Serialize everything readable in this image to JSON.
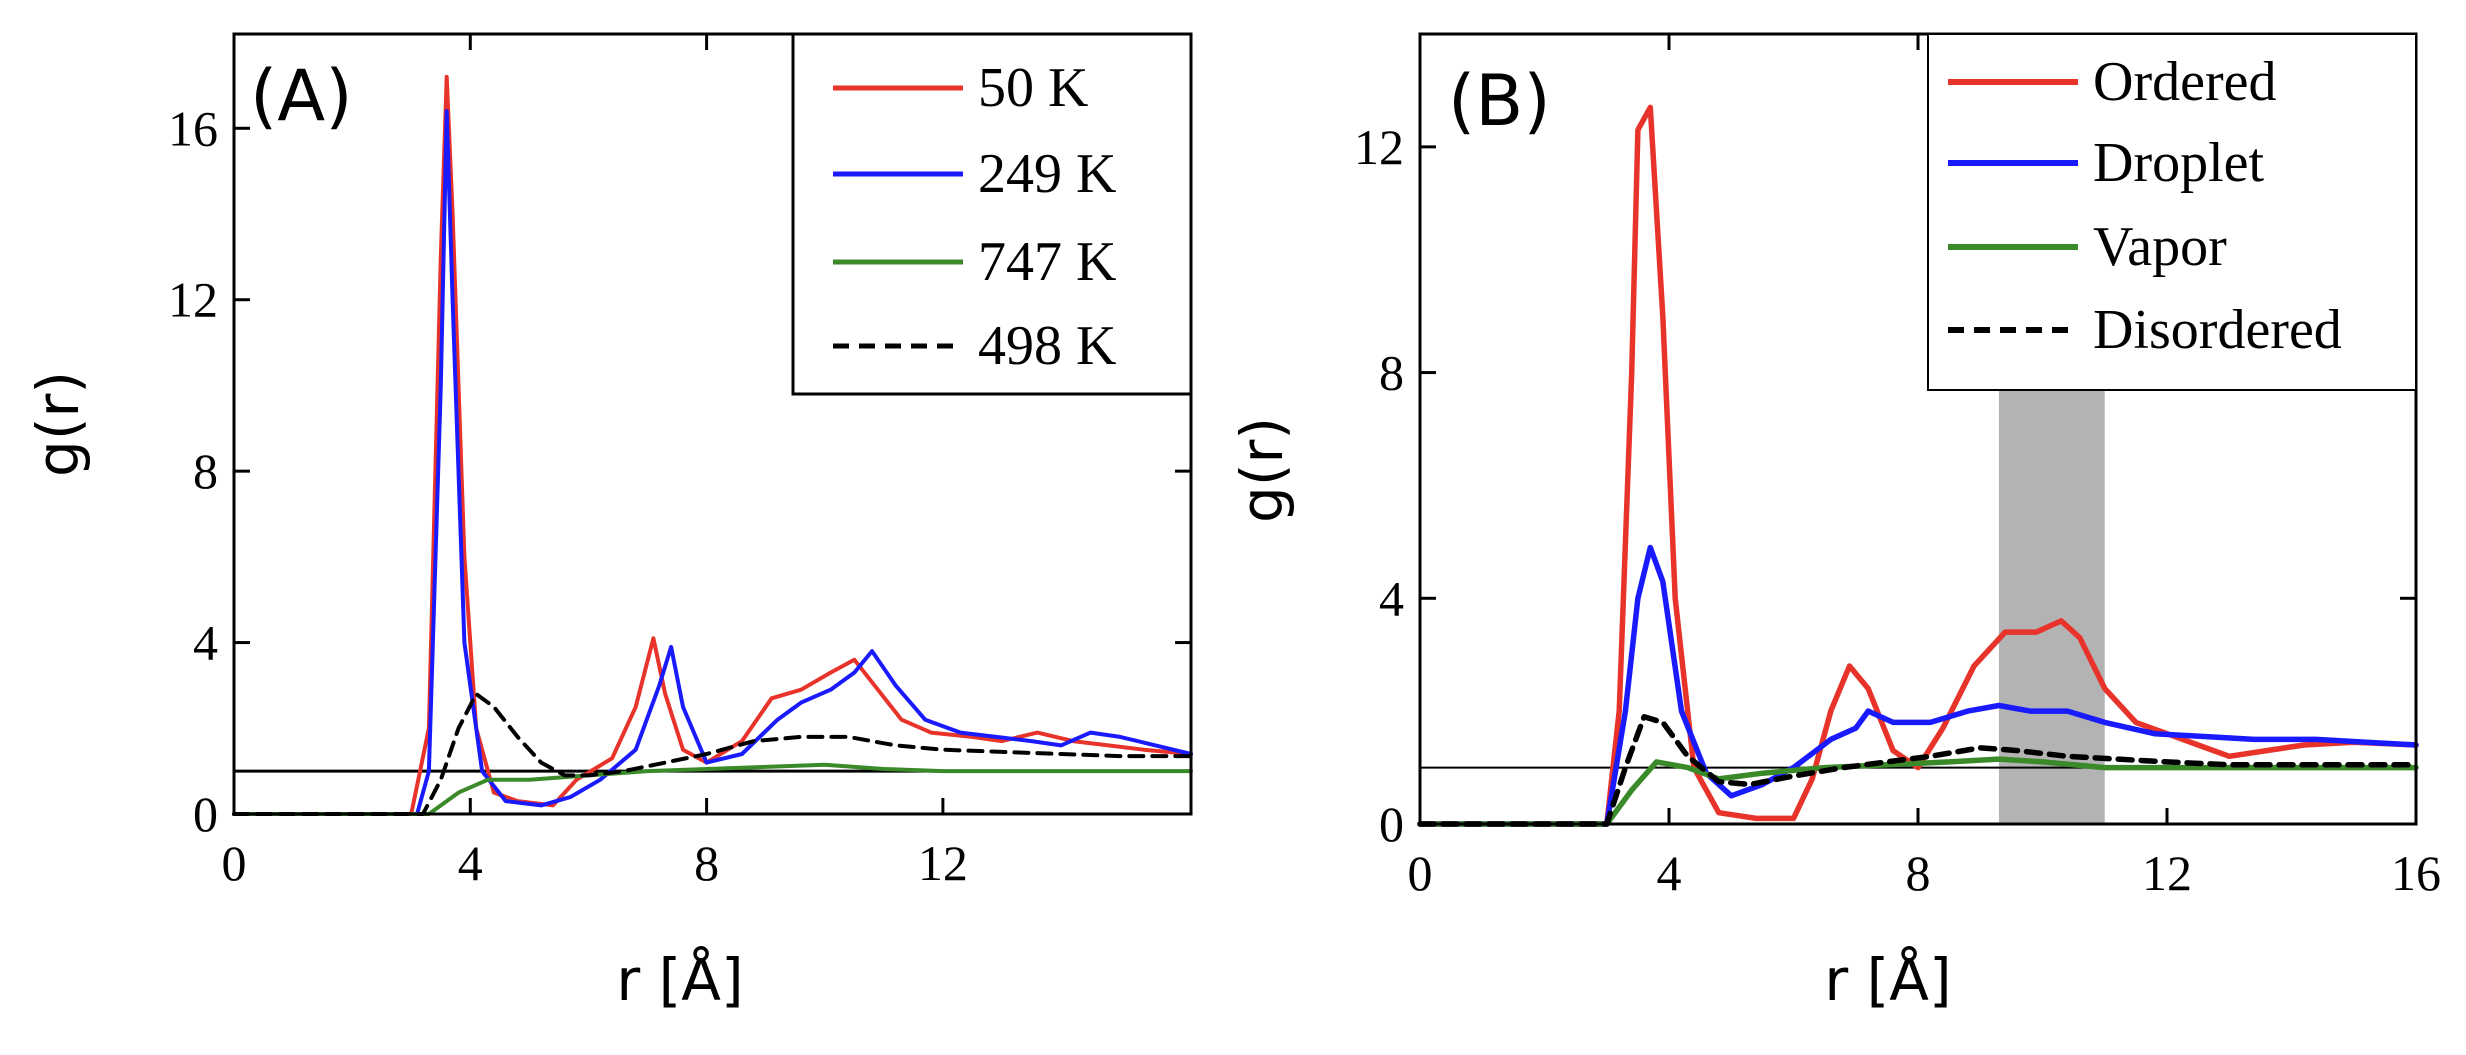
{
  "colors": {
    "red": "#e8332a",
    "blue": "#1a1aff",
    "green": "#3a8a2a",
    "black": "#000000",
    "shade": "#b3b3b3"
  },
  "chart_data": [
    {
      "type": "line",
      "panel": "(A)",
      "xlabel": "r [Å]",
      "ylabel": "g(r)",
      "xlim": [
        0,
        16.2
      ],
      "ylim": [
        0,
        18.2
      ],
      "xticks": [
        0,
        4,
        8,
        12
      ],
      "yticks": [
        0,
        4,
        8,
        12,
        16
      ],
      "reference_line_y": 1,
      "legend_position": "top-right",
      "series": [
        {
          "name": "50 K",
          "color": "red",
          "dash": "solid",
          "points": [
            [
              0,
              0
            ],
            [
              3,
              0
            ],
            [
              3.3,
              2
            ],
            [
              3.5,
              13
            ],
            [
              3.6,
              17.2
            ],
            [
              3.7,
              14
            ],
            [
              3.9,
              6
            ],
            [
              4.1,
              2
            ],
            [
              4.4,
              0.5
            ],
            [
              4.8,
              0.3
            ],
            [
              5.4,
              0.2
            ],
            [
              5.8,
              0.8
            ],
            [
              6.4,
              1.3
            ],
            [
              6.8,
              2.5
            ],
            [
              7.1,
              4.1
            ],
            [
              7.3,
              2.8
            ],
            [
              7.6,
              1.5
            ],
            [
              8,
              1.2
            ],
            [
              8.6,
              1.7
            ],
            [
              9.1,
              2.7
            ],
            [
              9.6,
              2.9
            ],
            [
              10.1,
              3.3
            ],
            [
              10.5,
              3.6
            ],
            [
              10.9,
              2.9
            ],
            [
              11.3,
              2.2
            ],
            [
              11.8,
              1.9
            ],
            [
              12.5,
              1.8
            ],
            [
              13,
              1.7
            ],
            [
              13.6,
              1.9
            ],
            [
              14.2,
              1.7
            ],
            [
              14.8,
              1.6
            ],
            [
              15.4,
              1.5
            ],
            [
              16.2,
              1.4
            ]
          ]
        },
        {
          "name": "249 K",
          "color": "blue",
          "dash": "solid",
          "points": [
            [
              0,
              0
            ],
            [
              3.1,
              0
            ],
            [
              3.3,
              1
            ],
            [
              3.5,
              10
            ],
            [
              3.6,
              16.4
            ],
            [
              3.7,
              12
            ],
            [
              3.9,
              4
            ],
            [
              4.2,
              1
            ],
            [
              4.6,
              0.3
            ],
            [
              5.2,
              0.2
            ],
            [
              5.7,
              0.4
            ],
            [
              6.2,
              0.8
            ],
            [
              6.8,
              1.5
            ],
            [
              7.2,
              3
            ],
            [
              7.4,
              3.9
            ],
            [
              7.6,
              2.5
            ],
            [
              8,
              1.2
            ],
            [
              8.6,
              1.4
            ],
            [
              9.2,
              2.2
            ],
            [
              9.6,
              2.6
            ],
            [
              10.1,
              2.9
            ],
            [
              10.5,
              3.3
            ],
            [
              10.8,
              3.8
            ],
            [
              11.2,
              3
            ],
            [
              11.7,
              2.2
            ],
            [
              12.3,
              1.9
            ],
            [
              12.9,
              1.8
            ],
            [
              13.5,
              1.7
            ],
            [
              14,
              1.6
            ],
            [
              14.5,
              1.9
            ],
            [
              15,
              1.8
            ],
            [
              15.6,
              1.6
            ],
            [
              16.2,
              1.4
            ]
          ]
        },
        {
          "name": "747 K",
          "color": "green",
          "dash": "solid",
          "points": [
            [
              0,
              0
            ],
            [
              3.3,
              0
            ],
            [
              3.8,
              0.5
            ],
            [
              4.3,
              0.8
            ],
            [
              5,
              0.8
            ],
            [
              6,
              0.9
            ],
            [
              7,
              1
            ],
            [
              8,
              1.05
            ],
            [
              9,
              1.1
            ],
            [
              10,
              1.15
            ],
            [
              11,
              1.05
            ],
            [
              12,
              1
            ],
            [
              13,
              1
            ],
            [
              14,
              1
            ],
            [
              15,
              1
            ],
            [
              16.2,
              1
            ]
          ]
        },
        {
          "name": "498 K",
          "color": "black",
          "dash": "dashed",
          "points": [
            [
              0,
              0
            ],
            [
              3.2,
              0
            ],
            [
              3.5,
              0.8
            ],
            [
              3.8,
              2
            ],
            [
              4.1,
              2.8
            ],
            [
              4.4,
              2.5
            ],
            [
              4.8,
              1.8
            ],
            [
              5.2,
              1.2
            ],
            [
              5.6,
              0.9
            ],
            [
              6,
              0.9
            ],
            [
              6.6,
              1
            ],
            [
              7.3,
              1.2
            ],
            [
              8,
              1.4
            ],
            [
              8.8,
              1.7
            ],
            [
              9.6,
              1.8
            ],
            [
              10.4,
              1.8
            ],
            [
              11.2,
              1.6
            ],
            [
              12,
              1.5
            ],
            [
              13,
              1.45
            ],
            [
              14,
              1.4
            ],
            [
              15,
              1.35
            ],
            [
              16.2,
              1.35
            ]
          ]
        }
      ]
    },
    {
      "type": "line",
      "panel": "(B)",
      "xlabel": "r [Å]",
      "ylabel": "g(r)",
      "xlim": [
        0,
        16
      ],
      "ylim": [
        0,
        14
      ],
      "xticks": [
        0,
        4,
        8,
        12,
        16
      ],
      "yticks": [
        0,
        4,
        8,
        12
      ],
      "reference_line_y": 1,
      "shaded_band_x": [
        9.3,
        11
      ],
      "legend_position": "top-right",
      "series": [
        {
          "name": "Ordered",
          "color": "red",
          "dash": "solid",
          "points": [
            [
              0,
              0
            ],
            [
              3,
              0
            ],
            [
              3.2,
              2
            ],
            [
              3.4,
              8
            ],
            [
              3.5,
              12.3
            ],
            [
              3.7,
              12.7
            ],
            [
              3.9,
              9
            ],
            [
              4.1,
              4
            ],
            [
              4.4,
              1
            ],
            [
              4.8,
              0.2
            ],
            [
              5.4,
              0.1
            ],
            [
              6,
              0.1
            ],
            [
              6.3,
              0.8
            ],
            [
              6.6,
              2
            ],
            [
              6.9,
              2.8
            ],
            [
              7.2,
              2.4
            ],
            [
              7.6,
              1.3
            ],
            [
              8,
              1
            ],
            [
              8.4,
              1.7
            ],
            [
              8.9,
              2.8
            ],
            [
              9.4,
              3.4
            ],
            [
              9.9,
              3.4
            ],
            [
              10.3,
              3.6
            ],
            [
              10.6,
              3.3
            ],
            [
              11,
              2.4
            ],
            [
              11.5,
              1.8
            ],
            [
              12,
              1.6
            ],
            [
              12.5,
              1.4
            ],
            [
              13,
              1.2
            ],
            [
              13.6,
              1.3
            ],
            [
              14.2,
              1.4
            ],
            [
              15,
              1.45
            ],
            [
              16,
              1.4
            ]
          ]
        },
        {
          "name": "Droplet",
          "color": "blue",
          "dash": "solid",
          "points": [
            [
              0,
              0
            ],
            [
              3,
              0
            ],
            [
              3.3,
              2
            ],
            [
              3.5,
              4
            ],
            [
              3.7,
              4.9
            ],
            [
              3.9,
              4.3
            ],
            [
              4.2,
              2
            ],
            [
              4.6,
              0.9
            ],
            [
              5,
              0.5
            ],
            [
              5.5,
              0.7
            ],
            [
              6,
              1
            ],
            [
              6.6,
              1.5
            ],
            [
              7,
              1.7
            ],
            [
              7.2,
              2
            ],
            [
              7.6,
              1.8
            ],
            [
              8.2,
              1.8
            ],
            [
              8.8,
              2
            ],
            [
              9.3,
              2.1
            ],
            [
              9.8,
              2
            ],
            [
              10.4,
              2
            ],
            [
              11,
              1.8
            ],
            [
              11.8,
              1.6
            ],
            [
              12.6,
              1.55
            ],
            [
              13.4,
              1.5
            ],
            [
              14.4,
              1.5
            ],
            [
              15.2,
              1.45
            ],
            [
              16,
              1.4
            ]
          ]
        },
        {
          "name": "Vapor",
          "color": "green",
          "dash": "solid",
          "points": [
            [
              0,
              0
            ],
            [
              3,
              0
            ],
            [
              3.4,
              0.6
            ],
            [
              3.8,
              1.1
            ],
            [
              4.3,
              1
            ],
            [
              4.8,
              0.8
            ],
            [
              5.5,
              0.9
            ],
            [
              6.5,
              1
            ],
            [
              7.5,
              1.05
            ],
            [
              8.5,
              1.1
            ],
            [
              9.3,
              1.15
            ],
            [
              10,
              1.1
            ],
            [
              11,
              1
            ],
            [
              12,
              1
            ],
            [
              13,
              1
            ],
            [
              14,
              1
            ],
            [
              15,
              1
            ],
            [
              16,
              1
            ]
          ]
        },
        {
          "name": "Disordered",
          "color": "black",
          "dash": "dashed",
          "points": [
            [
              0,
              0
            ],
            [
              3,
              0
            ],
            [
              3.3,
              1
            ],
            [
              3.6,
              1.9
            ],
            [
              3.9,
              1.8
            ],
            [
              4.3,
              1.2
            ],
            [
              4.8,
              0.75
            ],
            [
              5.3,
              0.7
            ],
            [
              6,
              0.85
            ],
            [
              6.8,
              1
            ],
            [
              7.5,
              1.1
            ],
            [
              8.2,
              1.2
            ],
            [
              9,
              1.35
            ],
            [
              9.6,
              1.3
            ],
            [
              10.4,
              1.2
            ],
            [
              11.2,
              1.15
            ],
            [
              12,
              1.1
            ],
            [
              13,
              1.05
            ],
            [
              14,
              1.05
            ],
            [
              15,
              1.05
            ],
            [
              16,
              1.05
            ]
          ]
        }
      ]
    }
  ]
}
